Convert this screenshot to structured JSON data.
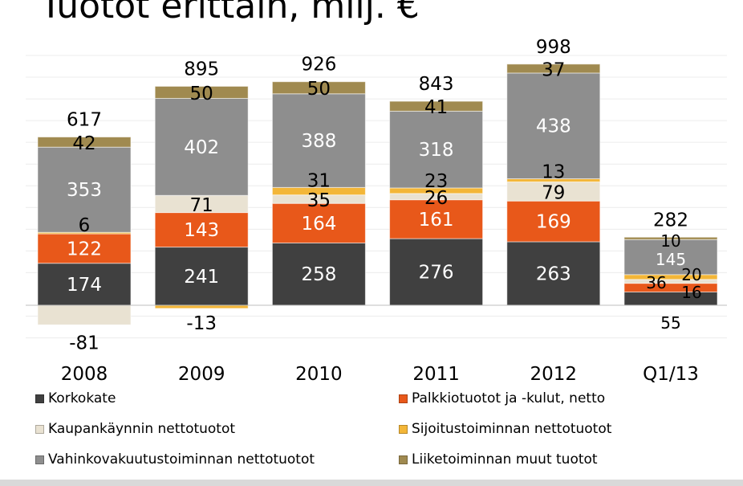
{
  "title": "Tuotot eriттäin, milj. €",
  "chart_data": {
    "type": "bar",
    "stacked": true,
    "categories": [
      "2008",
      "2009",
      "2010",
      "2011",
      "2012",
      "Q1/13"
    ],
    "totals": [
      617,
      895,
      926,
      843,
      998,
      282
    ],
    "series": [
      {
        "name": "Korkokate",
        "color": "#404040",
        "values": [
          174,
          241,
          258,
          276,
          263,
          55
        ]
      },
      {
        "name": "Palkkiotuotot ja -kulut, netto",
        "color": "#e8581a",
        "values": [
          122,
          143,
          164,
          161,
          169,
          36
        ]
      },
      {
        "name": "Kaupankäynnin nettotuotot",
        "color": "#e9e2d2",
        "values": [
          -81,
          71,
          35,
          26,
          79,
          16
        ]
      },
      {
        "name": "Sijoitustoiminnan nettotuotot",
        "color": "#f3b638",
        "values": [
          6,
          -13,
          31,
          23,
          13,
          20
        ]
      },
      {
        "name": "Vahinkovakuutustoiminnan nettotuotot",
        "color": "#8e8e8e",
        "values": [
          353,
          402,
          388,
          318,
          438,
          145
        ]
      },
      {
        "name": "Liiketoiminnan muut tuotot",
        "color": "#a08a50",
        "values": [
          42,
          50,
          50,
          41,
          37,
          10
        ]
      }
    ],
    "ylim": [
      -120,
      1050
    ],
    "grid": true,
    "legend_position": "bottom"
  }
}
